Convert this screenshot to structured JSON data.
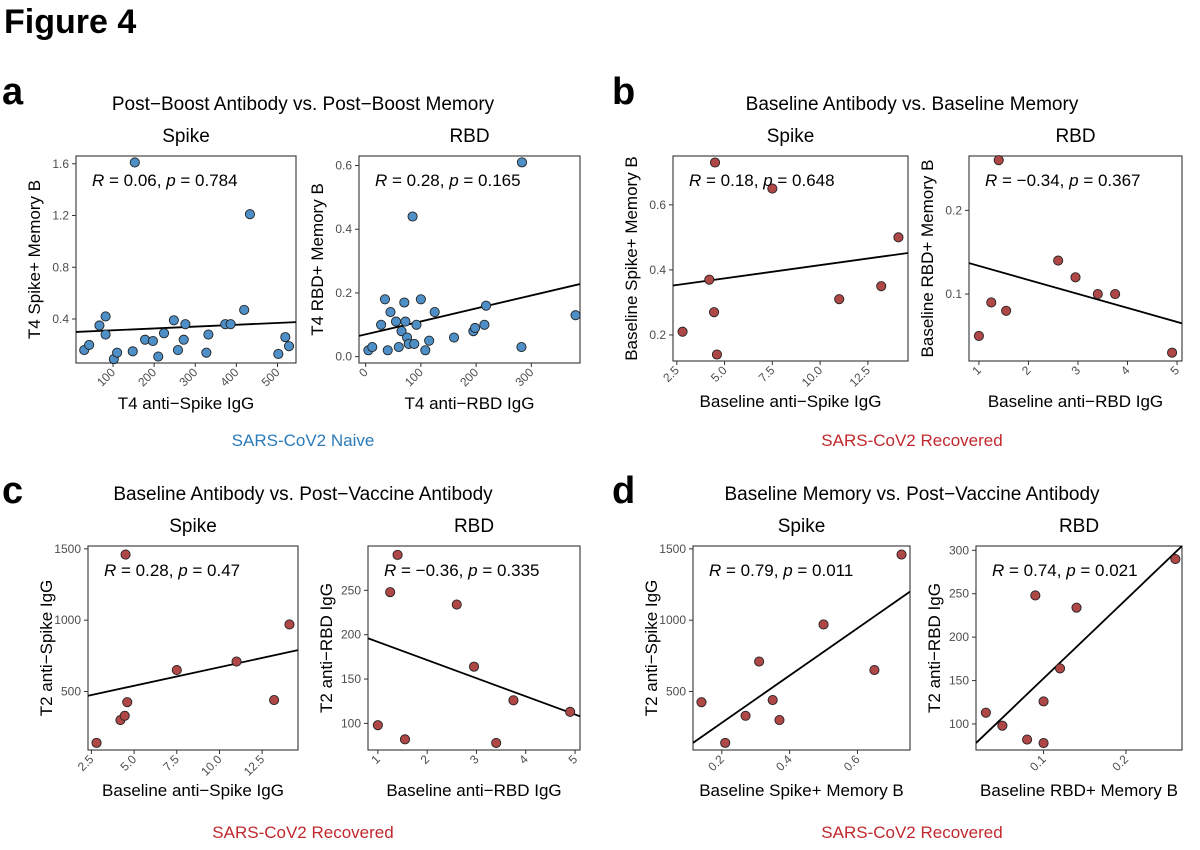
{
  "figure_title": "Figure 4",
  "colors": {
    "naive": "#2b7bba",
    "recovered": "#c0282d",
    "naive_point": "#4f8fc7",
    "recovered_point": "#b04747"
  },
  "panels": [
    {
      "letter": "a",
      "title": "Post−Boost Antibody vs. Post−Boost Memory",
      "group_label": "SARS-CoV2 Naive",
      "group": "naive"
    },
    {
      "letter": "b",
      "title": "Baseline Antibody vs. Baseline Memory",
      "group_label": "SARS-CoV2 Recovered",
      "group": "recovered"
    },
    {
      "letter": "c",
      "title": "Baseline Antibody vs. Post−Vaccine Antibody",
      "group_label": "SARS-CoV2 Recovered",
      "group": "recovered"
    },
    {
      "letter": "d",
      "title": "Baseline Memory vs. Post−Vaccine Antibody",
      "group_label": "SARS-CoV2 Recovered",
      "group": "recovered"
    }
  ],
  "chart_data": [
    {
      "type": "scatter",
      "panel": "a",
      "facet": "Spike",
      "group": "naive",
      "xlabel": "T4 anti−Spike IgG",
      "ylabel": "T4 Spike+ Memory B",
      "xlim": [
        10,
        545
      ],
      "ylim": [
        0.06,
        1.66
      ],
      "xticks": [
        100,
        200,
        300,
        400,
        500
      ],
      "xtick_labels": [
        "100",
        "200",
        "300",
        "400",
        "500"
      ],
      "xtick_rotate": true,
      "yticks": [
        0.4,
        0.8,
        1.2,
        1.6
      ],
      "ytick_labels": [
        "0.4",
        "0.8",
        "1.2",
        "1.6"
      ],
      "stat": {
        "R": "0.06",
        "p": "0.784"
      },
      "fit": {
        "x": [
          10,
          545
        ],
        "y": [
          0.3,
          0.376
        ]
      },
      "points": [
        {
          "x": 30,
          "y": 0.16
        },
        {
          "x": 42,
          "y": 0.2
        },
        {
          "x": 67,
          "y": 0.35
        },
        {
          "x": 82,
          "y": 0.42
        },
        {
          "x": 82,
          "y": 0.28
        },
        {
          "x": 102,
          "y": 0.09
        },
        {
          "x": 110,
          "y": 0.14
        },
        {
          "x": 148,
          "y": 0.15
        },
        {
          "x": 153,
          "y": 1.61
        },
        {
          "x": 178,
          "y": 0.24
        },
        {
          "x": 197,
          "y": 0.23
        },
        {
          "x": 210,
          "y": 0.11
        },
        {
          "x": 224,
          "y": 0.29
        },
        {
          "x": 248,
          "y": 0.39
        },
        {
          "x": 258,
          "y": 0.16
        },
        {
          "x": 272,
          "y": 0.24
        },
        {
          "x": 276,
          "y": 0.36
        },
        {
          "x": 327,
          "y": 0.14
        },
        {
          "x": 332,
          "y": 0.28
        },
        {
          "x": 373,
          "y": 0.36
        },
        {
          "x": 386,
          "y": 0.36
        },
        {
          "x": 419,
          "y": 0.47
        },
        {
          "x": 433,
          "y": 1.21
        },
        {
          "x": 502,
          "y": 0.13
        },
        {
          "x": 519,
          "y": 0.26
        },
        {
          "x": 528,
          "y": 0.19
        }
      ]
    },
    {
      "type": "scatter",
      "panel": "a",
      "facet": "RBD",
      "group": "naive",
      "xlabel": "T4 anti−RBD IgG",
      "ylabel": "T4 RBD+ Memory B",
      "xlim": [
        -12,
        388
      ],
      "ylim": [
        -0.02,
        0.63
      ],
      "xticks": [
        0,
        100,
        200,
        300
      ],
      "xtick_labels": [
        "0",
        "100",
        "200",
        "300"
      ],
      "xtick_rotate": true,
      "yticks": [
        0.0,
        0.2,
        0.4,
        0.6
      ],
      "ytick_labels": [
        "0.0",
        "0.2",
        "0.4",
        "0.6"
      ],
      "stat": {
        "R": "0.28",
        "p": "0.165"
      },
      "fit": {
        "x": [
          -12,
          388
        ],
        "y": [
          0.065,
          0.228
        ]
      },
      "points": [
        {
          "x": 5,
          "y": 0.02
        },
        {
          "x": 12,
          "y": 0.03
        },
        {
          "x": 28,
          "y": 0.1
        },
        {
          "x": 35,
          "y": 0.18
        },
        {
          "x": 40,
          "y": 0.02
        },
        {
          "x": 45,
          "y": 0.14
        },
        {
          "x": 55,
          "y": 0.11
        },
        {
          "x": 60,
          "y": 0.03
        },
        {
          "x": 65,
          "y": 0.08
        },
        {
          "x": 70,
          "y": 0.17
        },
        {
          "x": 72,
          "y": 0.11
        },
        {
          "x": 75,
          "y": 0.06
        },
        {
          "x": 78,
          "y": 0.04
        },
        {
          "x": 85,
          "y": 0.44
        },
        {
          "x": 88,
          "y": 0.04
        },
        {
          "x": 92,
          "y": 0.1
        },
        {
          "x": 100,
          "y": 0.18
        },
        {
          "x": 108,
          "y": 0.02
        },
        {
          "x": 115,
          "y": 0.05
        },
        {
          "x": 125,
          "y": 0.14
        },
        {
          "x": 160,
          "y": 0.06
        },
        {
          "x": 195,
          "y": 0.08
        },
        {
          "x": 198,
          "y": 0.09
        },
        {
          "x": 215,
          "y": 0.1
        },
        {
          "x": 218,
          "y": 0.16
        },
        {
          "x": 283,
          "y": 0.61
        },
        {
          "x": 282,
          "y": 0.03
        },
        {
          "x": 380,
          "y": 0.13
        }
      ]
    },
    {
      "type": "scatter",
      "panel": "b",
      "facet": "Spike",
      "group": "recovered",
      "xlabel": "Baseline anti−Spike IgG",
      "ylabel": "Baseline Spike+ Memory B",
      "xlim": [
        2.3,
        14.6
      ],
      "ylim": [
        0.12,
        0.75
      ],
      "xticks": [
        2.5,
        5.0,
        7.5,
        10.0,
        12.5
      ],
      "xtick_labels": [
        "2.5",
        "5.0",
        "7.5",
        "10.0",
        "12.5"
      ],
      "xtick_rotate": true,
      "yticks": [
        0.2,
        0.4,
        0.6
      ],
      "ytick_labels": [
        "0.2",
        "0.4",
        "0.6"
      ],
      "stat": {
        "R": "0.18",
        "p": "0.648"
      },
      "fit": {
        "x": [
          2.3,
          14.6
        ],
        "y": [
          0.352,
          0.452
        ]
      },
      "points": [
        {
          "x": 2.8,
          "y": 0.21
        },
        {
          "x": 4.2,
          "y": 0.37
        },
        {
          "x": 4.45,
          "y": 0.27
        },
        {
          "x": 4.5,
          "y": 0.73
        },
        {
          "x": 4.6,
          "y": 0.14
        },
        {
          "x": 7.5,
          "y": 0.65
        },
        {
          "x": 11.0,
          "y": 0.31
        },
        {
          "x": 13.2,
          "y": 0.35
        },
        {
          "x": 14.1,
          "y": 0.5
        }
      ]
    },
    {
      "type": "scatter",
      "panel": "b",
      "facet": "RBD",
      "group": "recovered",
      "xlabel": "Baseline anti−RBD IgG",
      "ylabel": "Baseline RBD+ Memory B",
      "xlim": [
        0.8,
        5.1
      ],
      "ylim": [
        0.02,
        0.265
      ],
      "xticks": [
        1,
        2,
        3,
        4,
        5
      ],
      "xtick_labels": [
        "1",
        "2",
        "3",
        "4",
        "5"
      ],
      "xtick_rotate": true,
      "yticks": [
        0.1,
        0.2
      ],
      "ytick_labels": [
        "0.1",
        "0.2"
      ],
      "stat": {
        "R": "−0.34",
        "p": "0.367"
      },
      "fit": {
        "x": [
          0.8,
          5.1
        ],
        "y": [
          0.137,
          0.065
        ]
      },
      "points": [
        {
          "x": 1.0,
          "y": 0.05
        },
        {
          "x": 1.25,
          "y": 0.09
        },
        {
          "x": 1.4,
          "y": 0.26
        },
        {
          "x": 1.55,
          "y": 0.08
        },
        {
          "x": 2.6,
          "y": 0.14
        },
        {
          "x": 2.95,
          "y": 0.12
        },
        {
          "x": 3.4,
          "y": 0.1
        },
        {
          "x": 3.75,
          "y": 0.1
        },
        {
          "x": 4.9,
          "y": 0.03
        }
      ]
    },
    {
      "type": "scatter",
      "panel": "c",
      "facet": "Spike",
      "group": "recovered",
      "xlabel": "Baseline anti−Spike IgG",
      "ylabel": "T2 anti−Spike IgG",
      "xlim": [
        2.3,
        14.6
      ],
      "ylim": [
        90,
        1520
      ],
      "xticks": [
        2.5,
        5.0,
        7.5,
        10.0,
        12.5
      ],
      "xtick_labels": [
        "2.5",
        "5.0",
        "7.5",
        "10.0",
        "12.5"
      ],
      "xtick_rotate": true,
      "yticks": [
        500,
        1000,
        1500
      ],
      "ytick_labels": [
        "500",
        "1000",
        "1500"
      ],
      "stat": {
        "R": "0.28",
        "p": "0.47"
      },
      "fit": {
        "x": [
          2.3,
          14.6
        ],
        "y": [
          470,
          790
        ]
      },
      "points": [
        {
          "x": 2.8,
          "y": 140
        },
        {
          "x": 4.2,
          "y": 300
        },
        {
          "x": 4.45,
          "y": 330
        },
        {
          "x": 4.5,
          "y": 1460
        },
        {
          "x": 4.6,
          "y": 425
        },
        {
          "x": 7.5,
          "y": 650
        },
        {
          "x": 11.0,
          "y": 710
        },
        {
          "x": 13.2,
          "y": 440
        },
        {
          "x": 14.1,
          "y": 970
        }
      ]
    },
    {
      "type": "scatter",
      "panel": "c",
      "facet": "RBD",
      "group": "recovered",
      "xlabel": "Baseline anti−RBD IgG",
      "ylabel": "T2 anti−RBD IgG",
      "xlim": [
        0.8,
        5.1
      ],
      "ylim": [
        70,
        300
      ],
      "xticks": [
        1,
        2,
        3,
        4,
        5
      ],
      "xtick_labels": [
        "1",
        "2",
        "3",
        "4",
        "5"
      ],
      "xtick_rotate": true,
      "yticks": [
        100,
        150,
        200,
        250
      ],
      "ytick_labels": [
        "100",
        "150",
        "200",
        "250"
      ],
      "stat": {
        "R": "−0.36",
        "p": "0.335"
      },
      "fit": {
        "x": [
          0.8,
          5.1
        ],
        "y": [
          196,
          108
        ]
      },
      "points": [
        {
          "x": 1.0,
          "y": 98
        },
        {
          "x": 1.25,
          "y": 248
        },
        {
          "x": 1.4,
          "y": 290
        },
        {
          "x": 1.55,
          "y": 82
        },
        {
          "x": 2.6,
          "y": 234
        },
        {
          "x": 2.95,
          "y": 164
        },
        {
          "x": 3.4,
          "y": 78
        },
        {
          "x": 3.75,
          "y": 126
        },
        {
          "x": 4.9,
          "y": 113
        }
      ]
    },
    {
      "type": "scatter",
      "panel": "d",
      "facet": "Spike",
      "group": "recovered",
      "xlabel": "Baseline Spike+ Memory B",
      "ylabel": "T2 anti−Spike IgG",
      "xlim": [
        0.115,
        0.755
      ],
      "ylim": [
        90,
        1520
      ],
      "xticks": [
        0.2,
        0.4,
        0.6
      ],
      "xtick_labels": [
        "0.2",
        "0.4",
        "0.6"
      ],
      "xtick_rotate": true,
      "yticks": [
        500,
        1000,
        1500
      ],
      "ytick_labels": [
        "500",
        "1000",
        "1500"
      ],
      "stat": {
        "R": "0.79",
        "p": "0.011"
      },
      "fit": {
        "x": [
          0.115,
          0.755
        ],
        "y": [
          140,
          1200
        ]
      },
      "points": [
        {
          "x": 0.14,
          "y": 425
        },
        {
          "x": 0.21,
          "y": 140
        },
        {
          "x": 0.27,
          "y": 330
        },
        {
          "x": 0.31,
          "y": 710
        },
        {
          "x": 0.35,
          "y": 440
        },
        {
          "x": 0.37,
          "y": 300
        },
        {
          "x": 0.5,
          "y": 970
        },
        {
          "x": 0.65,
          "y": 650
        },
        {
          "x": 0.73,
          "y": 1460
        }
      ]
    },
    {
      "type": "scatter",
      "panel": "d",
      "facet": "RBD",
      "group": "recovered",
      "xlabel": "Baseline RBD+ Memory B",
      "ylabel": "T2 anti−RBD IgG",
      "xlim": [
        0.018,
        0.268
      ],
      "ylim": [
        70,
        305
      ],
      "xticks": [
        0.1,
        0.2
      ],
      "xtick_labels": [
        "0.1",
        "0.2"
      ],
      "xtick_rotate": true,
      "yticks": [
        100,
        150,
        200,
        250,
        300
      ],
      "ytick_labels": [
        "100",
        "150",
        "200",
        "250",
        "300"
      ],
      "stat": {
        "R": "0.74",
        "p": "0.021"
      },
      "fit": {
        "x": [
          0.018,
          0.268
        ],
        "y": [
          78,
          305
        ]
      },
      "points": [
        {
          "x": 0.03,
          "y": 113
        },
        {
          "x": 0.05,
          "y": 98
        },
        {
          "x": 0.08,
          "y": 82
        },
        {
          "x": 0.09,
          "y": 248
        },
        {
          "x": 0.1,
          "y": 78
        },
        {
          "x": 0.1,
          "y": 126
        },
        {
          "x": 0.12,
          "y": 164
        },
        {
          "x": 0.14,
          "y": 234
        },
        {
          "x": 0.26,
          "y": 290
        }
      ]
    }
  ]
}
